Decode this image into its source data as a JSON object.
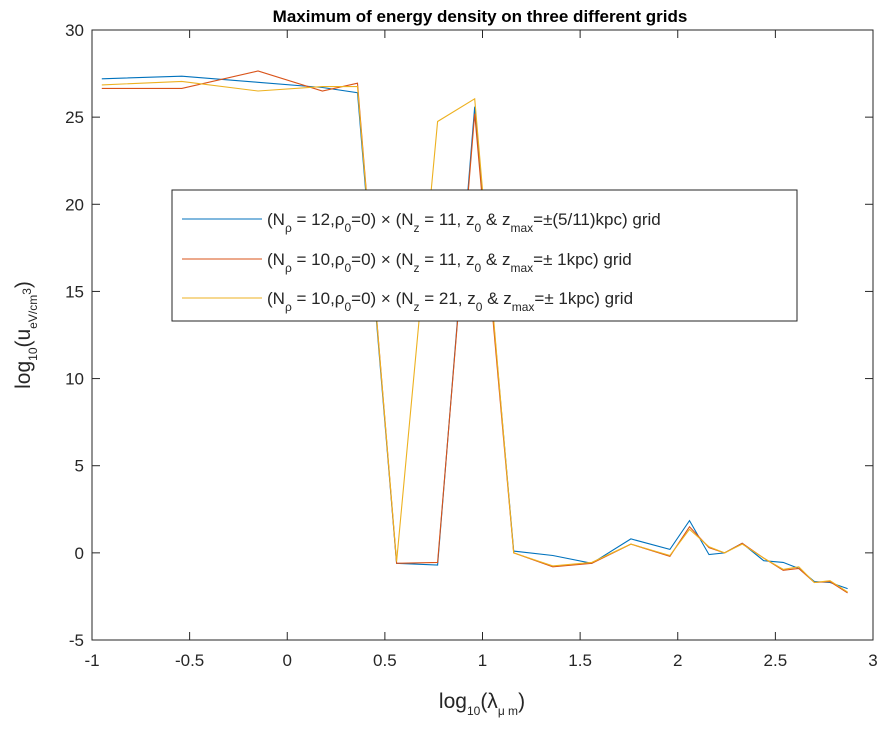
{
  "chart_data": {
    "type": "line",
    "title": "Maximum of energy density on three different grids",
    "xlabel": "log_10(λ_μ m)",
    "ylabel": "log_10(u_eV/cm^3)",
    "xlim": [
      -1,
      3
    ],
    "ylim": [
      -5,
      30
    ],
    "x_ticks": [
      -1,
      -0.5,
      0,
      0.5,
      1,
      1.5,
      2,
      2.5,
      3
    ],
    "x_tick_labels": [
      "-1",
      "-0.5",
      "0",
      "0.5",
      "1",
      "1.5",
      "2",
      "2.5",
      "3"
    ],
    "y_ticks": [
      -5,
      0,
      5,
      10,
      15,
      20,
      25,
      30
    ],
    "y_tick_labels": [
      "-5",
      "0",
      "5",
      "10",
      "15",
      "20",
      "25",
      "30"
    ],
    "grid": false,
    "legend_position": "center-left",
    "x": [
      -0.95,
      -0.54,
      -0.15,
      0.18,
      0.36,
      0.56,
      0.77,
      0.96,
      1.16,
      1.36,
      1.56,
      1.76,
      1.96,
      2.06,
      2.16,
      2.24,
      2.33,
      2.44,
      2.54,
      2.62,
      2.7,
      2.78,
      2.87
    ],
    "series": [
      {
        "name": "(N_ρ = 12,ρ_0=0) × (N_z = 11, z_0 & z_max=±(5/11)kpc) grid",
        "color": "#0072BD",
        "values": [
          27.2,
          27.35,
          27.0,
          26.7,
          26.4,
          -0.6,
          -0.7,
          25.6,
          0.1,
          -0.15,
          -0.6,
          0.8,
          0.2,
          1.85,
          -0.1,
          0.0,
          0.55,
          -0.45,
          -0.55,
          -0.9,
          -1.65,
          -1.7,
          -2.05
        ]
      },
      {
        "name": "(N_ρ = 10,ρ_0=0) × (N_z = 11, z_0 & z_max=± 1kpc) grid",
        "color": "#D95319",
        "values": [
          26.65,
          26.65,
          27.65,
          26.5,
          26.95,
          -0.6,
          -0.55,
          25.2,
          0.0,
          -0.8,
          -0.6,
          0.5,
          -0.2,
          1.5,
          0.3,
          0.0,
          0.55,
          -0.3,
          -1.0,
          -0.9,
          -1.7,
          -1.65,
          -2.3
        ]
      },
      {
        "name": "(N_ρ = 10,ρ_0=0) × (N_z = 21, z_0 & z_max=± 1kpc) grid",
        "color": "#EDB120",
        "values": [
          26.85,
          27.05,
          26.5,
          26.75,
          26.75,
          -0.5,
          24.75,
          26.05,
          0.0,
          -0.75,
          -0.55,
          0.5,
          -0.15,
          1.35,
          0.35,
          0.0,
          0.5,
          -0.3,
          -0.95,
          -0.8,
          -1.7,
          -1.6,
          -2.25
        ]
      }
    ]
  }
}
